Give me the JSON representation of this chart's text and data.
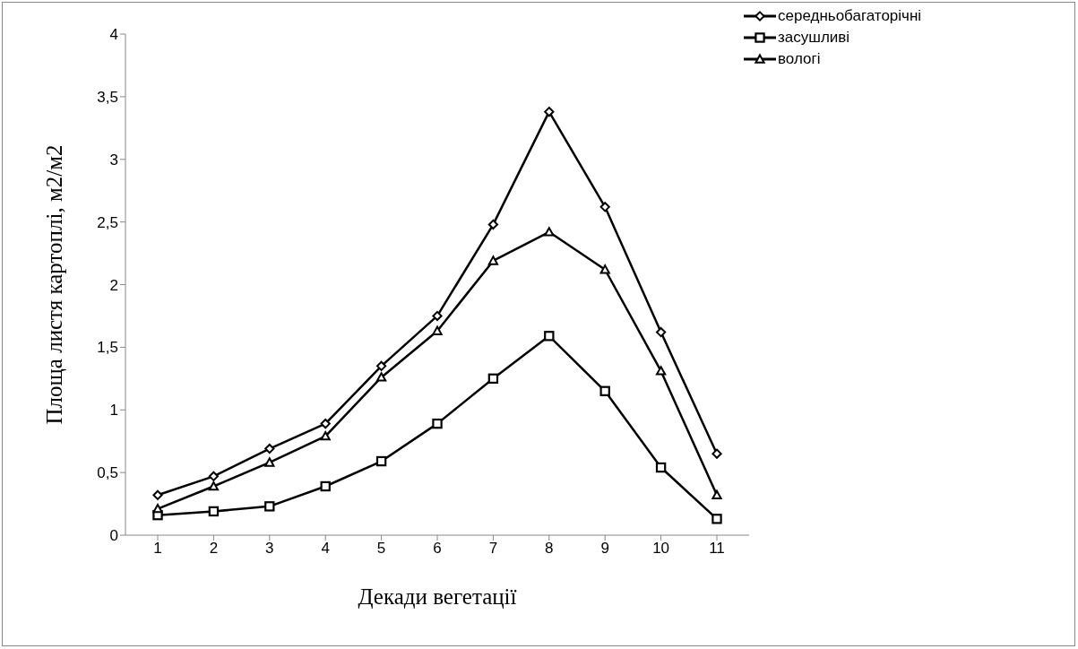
{
  "chart_data": {
    "type": "line",
    "xlabel": "Декади вегетації",
    "ylabel": "Площа листя картоплі, м2/м2",
    "categories": [
      "1",
      "2",
      "3",
      "4",
      "5",
      "6",
      "7",
      "8",
      "9",
      "10",
      "11"
    ],
    "ylim": [
      0,
      4
    ],
    "yticks": [
      0,
      {
        "value": 0.5,
        "label": "0,5"
      },
      1,
      {
        "value": 1.5,
        "label": "1,5"
      },
      2,
      {
        "value": 2.5,
        "label": "2,5"
      },
      3,
      {
        "value": 3.5,
        "label": "3,5"
      },
      4
    ],
    "legend": "top right",
    "line_style": "solid",
    "series": [
      {
        "name": "середньобагаторічні",
        "color": "#000000",
        "marker": "diamond",
        "values": [
          0.32,
          0.47,
          0.69,
          0.89,
          1.35,
          1.75,
          2.48,
          3.38,
          2.62,
          1.62,
          0.65
        ]
      },
      {
        "name": "засушливі",
        "color": "#000000",
        "marker": "square",
        "values": [
          0.16,
          0.19,
          0.23,
          0.39,
          0.59,
          0.89,
          1.25,
          1.59,
          1.15,
          0.54,
          0.13
        ]
      },
      {
        "name": "вологі",
        "color": "#000000",
        "marker": "triangle",
        "values": [
          0.21,
          0.39,
          0.58,
          0.79,
          1.26,
          1.63,
          2.19,
          2.42,
          2.12,
          1.31,
          0.32
        ]
      }
    ]
  }
}
